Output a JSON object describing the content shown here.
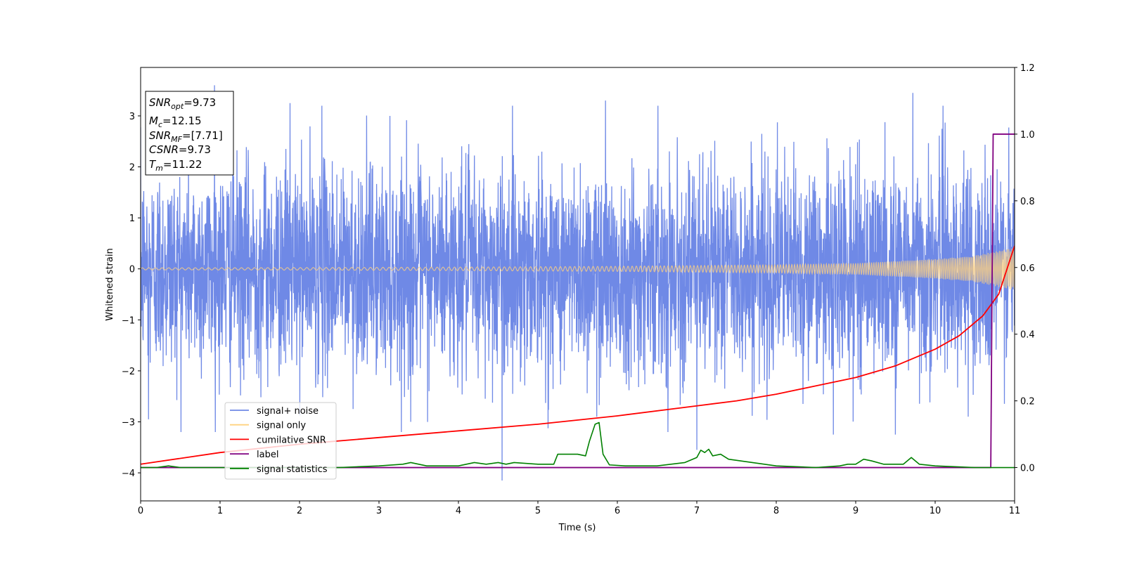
{
  "chart_data": {
    "type": "line",
    "xlabel": "Time (s)",
    "ylabel": "Whitened strain",
    "xlim": [
      0,
      11
    ],
    "ylim_left": [
      -4.55,
      3.95
    ],
    "ylim_right": [
      -0.1,
      1.2
    ],
    "x_ticks": [
      "0",
      "1",
      "2",
      "3",
      "4",
      "5",
      "6",
      "7",
      "8",
      "9",
      "10",
      "11"
    ],
    "y_ticks_left": [
      "3",
      "2",
      "1",
      "0",
      "−1",
      "−2",
      "−3",
      "−4"
    ],
    "y_ticks_right": [
      "1.2",
      "1.0",
      "0.8",
      "0.6",
      "0.4",
      "0.2",
      "0.0"
    ],
    "info_box": {
      "line1": {
        "var": "SNR",
        "sub": "opt",
        "rest": "=9.73"
      },
      "line2": {
        "var": "M",
        "sub": "c",
        "rest": "=12.15"
      },
      "line3": {
        "var": "SNR",
        "sub": "MF",
        "rest": "=[7.71]"
      },
      "line4": {
        "var": "CSNR",
        "sub": "",
        "rest": "=9.73"
      },
      "line5": {
        "var": "T",
        "sub": "m",
        "rest": "=11.22"
      }
    },
    "legend": {
      "location": "lower-left",
      "entries": [
        {
          "label": "signal+ noise",
          "color": "#6f89e6"
        },
        {
          "label": "signal only",
          "color": "#ffd27f"
        },
        {
          "label": "cumilative SNR",
          "color": "#ff0000"
        },
        {
          "label": "label",
          "color": "#800080"
        },
        {
          "label": "signal statistics",
          "color": "#008000"
        }
      ]
    },
    "series": [
      {
        "name": "signal+ noise",
        "axis": "left",
        "style": "noise",
        "envelope_typical": 2.3,
        "spikes": [
          {
            "x": 0.93,
            "y": 3.6
          },
          {
            "x": 1.88,
            "y": 3.25
          },
          {
            "x": 2.28,
            "y": 3.2
          },
          {
            "x": 4.55,
            "y": 3.2
          },
          {
            "x": 4.55,
            "y": -4.15
          },
          {
            "x": 5.85,
            "y": 3.3
          },
          {
            "x": 9.72,
            "y": 3.45
          },
          {
            "x": 0.1,
            "y": -2.95
          },
          {
            "x": 3.4,
            "y": -3.0
          },
          {
            "x": 5.74,
            "y": -2.9
          },
          {
            "x": 7.0,
            "y": -3.55
          },
          {
            "x": 8.72,
            "y": -3.25
          },
          {
            "x": 9.5,
            "y": -3.25
          },
          {
            "x": 10.1,
            "y": 3.2
          }
        ]
      },
      {
        "name": "signal only",
        "axis": "left",
        "style": "chirp",
        "x": [
          0,
          2,
          4,
          6,
          8,
          9,
          10,
          10.5,
          11
        ],
        "amplitude": [
          0.02,
          0.025,
          0.035,
          0.05,
          0.08,
          0.11,
          0.19,
          0.26,
          0.42
        ]
      },
      {
        "name": "cumilative SNR",
        "axis": "right",
        "x": [
          0,
          1,
          2,
          3,
          4,
          5,
          6,
          7,
          7.5,
          8,
          8.5,
          9,
          9.5,
          10,
          10.3,
          10.6,
          10.8,
          11
        ],
        "y": [
          0.01,
          0.045,
          0.07,
          0.09,
          0.11,
          0.13,
          0.155,
          0.185,
          0.2,
          0.22,
          0.245,
          0.27,
          0.305,
          0.355,
          0.395,
          0.455,
          0.52,
          0.665
        ]
      },
      {
        "name": "label",
        "axis": "right",
        "x": [
          0,
          10.7,
          10.73,
          11
        ],
        "y": [
          0.0,
          0.0,
          1.0,
          1.0
        ]
      },
      {
        "name": "signal statistics",
        "axis": "right",
        "x": [
          0,
          0.2,
          0.35,
          0.5,
          1,
          1.5,
          2,
          2.5,
          3,
          3.3,
          3.4,
          3.6,
          4,
          4.2,
          4.35,
          4.5,
          4.6,
          4.7,
          5,
          5.2,
          5.25,
          5.5,
          5.6,
          5.65,
          5.72,
          5.77,
          5.82,
          5.9,
          6.1,
          6.5,
          6.85,
          7.0,
          7.05,
          7.1,
          7.15,
          7.2,
          7.3,
          7.4,
          7.7,
          8,
          8.5,
          8.8,
          8.9,
          9.0,
          9.1,
          9.2,
          9.35,
          9.6,
          9.7,
          9.8,
          10,
          10.5,
          10.7,
          11
        ],
        "y": [
          0.0,
          0.0,
          0.005,
          0.0,
          0.0,
          0.0,
          0.0,
          0.0,
          0.005,
          0.01,
          0.015,
          0.005,
          0.005,
          0.015,
          0.01,
          0.015,
          0.01,
          0.015,
          0.01,
          0.01,
          0.04,
          0.04,
          0.035,
          0.08,
          0.13,
          0.135,
          0.04,
          0.008,
          0.005,
          0.005,
          0.015,
          0.03,
          0.052,
          0.045,
          0.055,
          0.035,
          0.04,
          0.025,
          0.015,
          0.005,
          0.0,
          0.005,
          0.01,
          0.01,
          0.025,
          0.02,
          0.01,
          0.01,
          0.03,
          0.01,
          0.005,
          0.0,
          0.0,
          0.0
        ]
      }
    ]
  }
}
